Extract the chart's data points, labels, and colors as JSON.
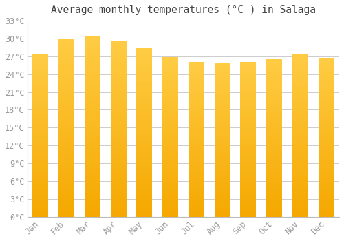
{
  "title": "Average monthly temperatures (°C ) in Salaga",
  "months": [
    "Jan",
    "Feb",
    "Mar",
    "Apr",
    "May",
    "Jun",
    "Jul",
    "Aug",
    "Sep",
    "Oct",
    "Nov",
    "Dec"
  ],
  "values": [
    27.3,
    30.0,
    30.5,
    29.6,
    28.4,
    26.9,
    26.1,
    25.8,
    26.1,
    26.6,
    27.4,
    26.8
  ],
  "bar_color_top": "#FFCC44",
  "bar_color_bottom": "#F5A800",
  "ylim": [
    0,
    33
  ],
  "yticks": [
    0,
    3,
    6,
    9,
    12,
    15,
    18,
    21,
    24,
    27,
    30,
    33
  ],
  "ytick_labels": [
    "0°C",
    "3°C",
    "6°C",
    "9°C",
    "12°C",
    "15°C",
    "18°C",
    "21°C",
    "24°C",
    "27°C",
    "30°C",
    "33°C"
  ],
  "background_color": "#ffffff",
  "plot_bg_color": "#ffffff",
  "grid_color": "#cccccc",
  "tick_label_color": "#999999",
  "title_color": "#444444",
  "title_fontsize": 10.5,
  "tick_fontsize": 8.5,
  "font_family": "monospace",
  "bar_width": 0.6
}
